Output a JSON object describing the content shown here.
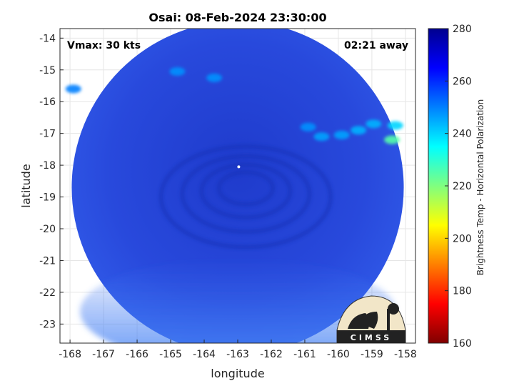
{
  "chart_data": {
    "type": "heatmap",
    "title": "Osai: 08-Feb-2024 23:30:00",
    "xlabel": "longitude",
    "ylabel": "latitude",
    "xlim": [
      -168.3,
      -157.7
    ],
    "ylim": [
      -23.6,
      -13.7
    ],
    "x_ticks": [
      -168,
      -167,
      -166,
      -165,
      -164,
      -163,
      -162,
      -161,
      -160,
      -159,
      -158
    ],
    "y_ticks": [
      -14,
      -15,
      -16,
      -17,
      -18,
      -19,
      -20,
      -21,
      -22,
      -23
    ],
    "grid": true,
    "annotation_left": "Vmax: 30 kts",
    "annotation_right": "02:21 away",
    "swath": {
      "shape": "circle",
      "center": [
        -163.0,
        -18.7
      ],
      "description_values": "Brightness temperatures mostly 250-275 K over ocean, swirl near center",
      "storm_center": [
        -162.97,
        -18.05
      ]
    },
    "cold_spots": [
      {
        "lon": -164.8,
        "lat": -15.05,
        "value": 248
      },
      {
        "lon": -163.7,
        "lat": -15.25,
        "value": 248
      },
      {
        "lon": -167.9,
        "lat": -15.6,
        "value": 250
      },
      {
        "lon": -160.9,
        "lat": -16.8,
        "value": 248
      },
      {
        "lon": -160.5,
        "lat": -17.1,
        "value": 246
      },
      {
        "lon": -159.9,
        "lat": -17.05,
        "value": 246
      },
      {
        "lon": -158.95,
        "lat": -16.7,
        "value": 244
      },
      {
        "lon": -158.4,
        "lat": -17.2,
        "value": 225
      },
      {
        "lon": -158.3,
        "lat": -16.75,
        "value": 240
      },
      {
        "lon": -159.4,
        "lat": -16.9,
        "value": 244
      }
    ],
    "colorbar": {
      "label": "Brightness Temp - Horizontal Polarization",
      "range": [
        160,
        280
      ],
      "ticks": [
        280,
        260,
        240,
        220,
        200,
        180,
        160
      ],
      "colormap": "jet"
    },
    "logo_text": "CIMSS"
  },
  "colors": {
    "swath_base": "#2a4fe0",
    "swath_dark": "#1c37c8",
    "swath_south": "#3a70f0"
  }
}
